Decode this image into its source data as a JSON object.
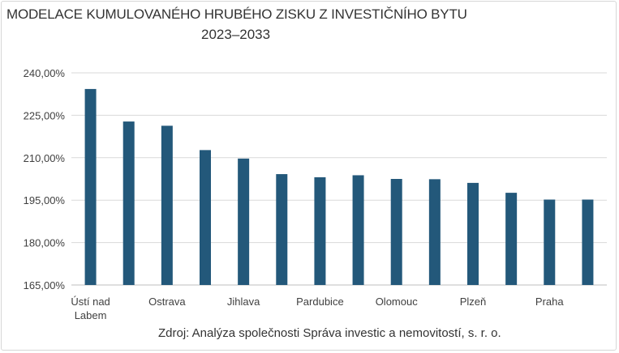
{
  "chart_data": {
    "type": "bar",
    "title": "MODELACE KUMULOVANÉHO HRUBÉHO ZISKU Z INVESTIČNÍHO BYTU",
    "subtitle": "2023–2033",
    "source": "Zdroj: Analýza společnosti Správa investic a nemovitostí, s. r. o.",
    "xlabel": "",
    "ylabel": "",
    "ylim": [
      165,
      240
    ],
    "yticks": [
      165,
      180,
      195,
      210,
      225,
      240
    ],
    "ytick_labels": [
      "165,00%",
      "180,00%",
      "195,00%",
      "210,00%",
      "225,00%",
      "240,00%"
    ],
    "grid": true,
    "legend": "none",
    "bar_color": "#23587a",
    "categories": [
      "Ústí nad Labem",
      "",
      "Ostrava",
      "",
      "Jihlava",
      "",
      "Pardubice",
      "",
      "Olomouc",
      "",
      "Plzeň",
      "",
      "Praha",
      ""
    ],
    "category_label_lines": [
      [
        "Ústí nad",
        "Labem"
      ],
      [],
      [
        "Ostrava"
      ],
      [],
      [
        "Jihlava"
      ],
      [],
      [
        "Pardubice"
      ],
      [],
      [
        "Olomouc"
      ],
      [],
      [
        "Plzeň"
      ],
      [],
      [
        "Praha"
      ],
      []
    ],
    "values": [
      234.3,
      222.8,
      221.3,
      212.7,
      209.7,
      204.2,
      203.1,
      203.8,
      202.5,
      202.4,
      201.1,
      197.6,
      195.2,
      195.2
    ]
  }
}
